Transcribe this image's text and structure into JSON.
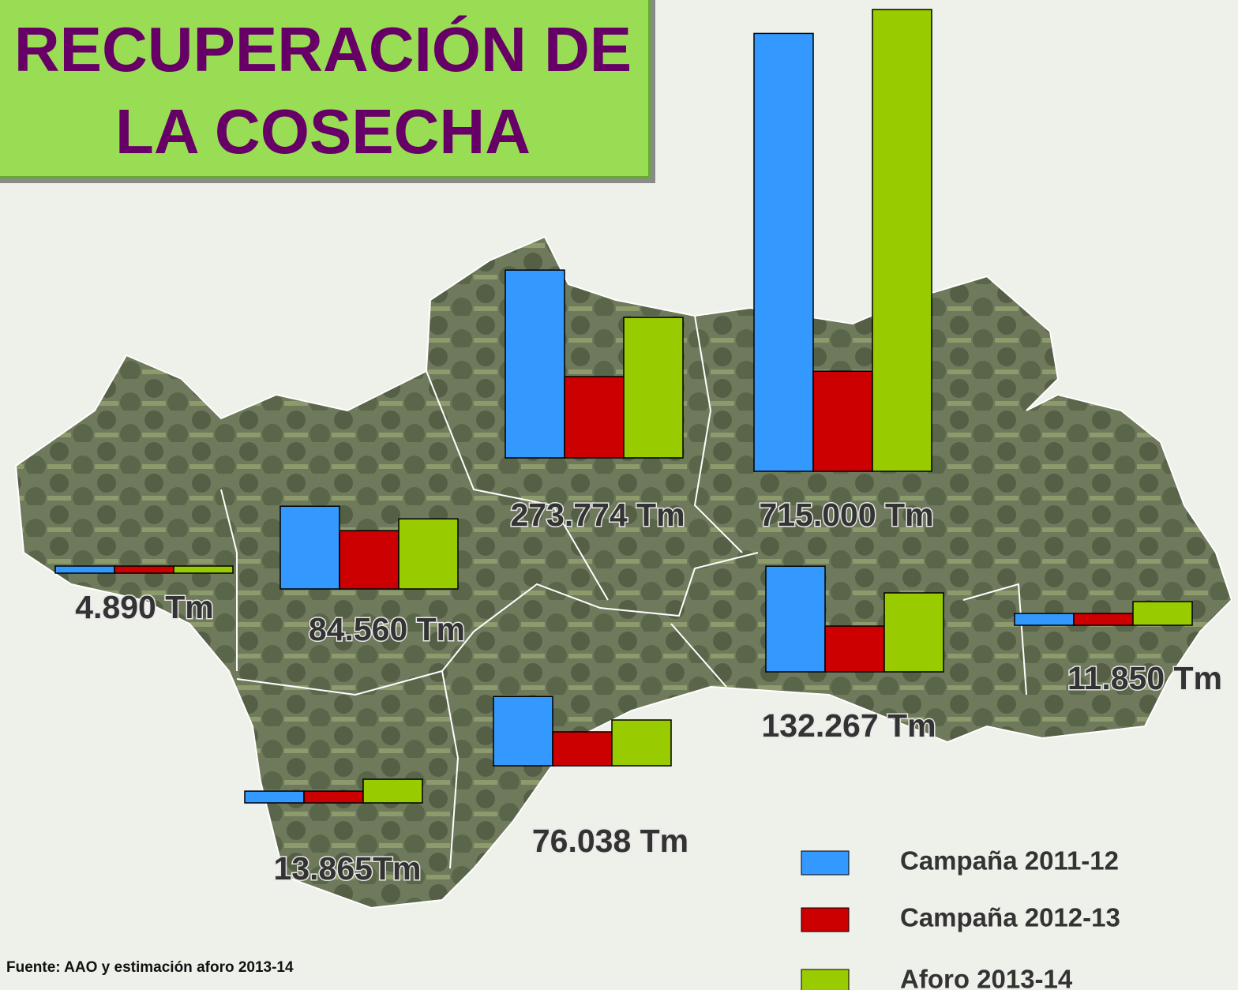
{
  "chart_data": {
    "type": "bar",
    "title": "RECUPERACIÓN DE LA COSECHA",
    "source": "Fuente: AAO y estimación aforo 2013-14",
    "categories": [
      null,
      null,
      null,
      null,
      null,
      null,
      null,
      null
    ],
    "series": [
      {
        "name": "Campaña 2011-12",
        "color": "#3399ff",
        "values": [
          4890,
          99800,
          366000,
          678000,
          177000,
          5900,
          115000,
          6900
        ]
      },
      {
        "name": "Campaña 2012-13",
        "color": "#cc0000",
        "values": [
          4890,
          70300,
          158400,
          155000,
          76700,
          5900,
          56400,
          6900
        ]
      },
      {
        "name": "Aforo 2013-14",
        "color": "#99cc00",
        "values": [
          4890,
          84560,
          273774,
          715000,
          132267,
          11850,
          76038,
          13865
        ],
        "value_labels": [
          "4.890 Tm",
          "84.560 Tm",
          "273.774 Tm",
          "715.000 Tm",
          "132.267 Tm",
          "11.850 Tm",
          "76.038 Tm",
          "13.865Tm"
        ]
      }
    ]
  }
}
